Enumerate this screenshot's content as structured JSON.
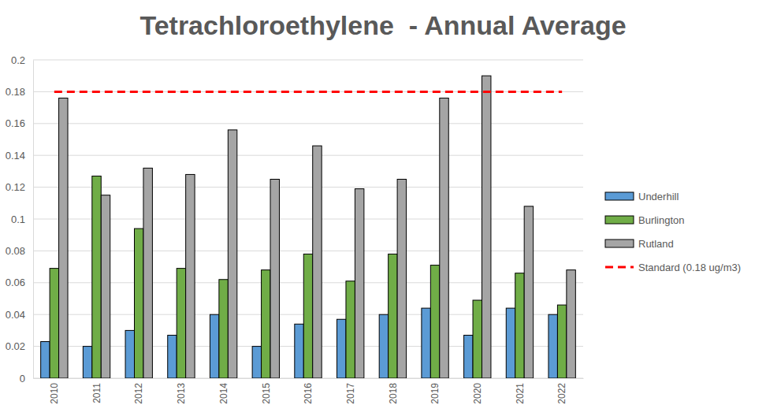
{
  "chart_data": {
    "type": "bar",
    "title": "Tetrachloroethylene  - Annual Average",
    "categories": [
      "2010",
      "2011",
      "2012",
      "2013",
      "2014",
      "2015",
      "2016",
      "2017",
      "2018",
      "2019",
      "2020",
      "2021",
      "2022"
    ],
    "series": [
      {
        "name": "Underhill",
        "color": "#5b9bd5",
        "values": [
          0.023,
          0.02,
          0.03,
          0.027,
          0.04,
          0.02,
          0.034,
          0.037,
          0.04,
          0.044,
          0.027,
          0.044,
          0.04
        ]
      },
      {
        "name": "Burlington",
        "color": "#70ad47",
        "values": [
          0.069,
          0.127,
          0.094,
          0.069,
          0.062,
          0.068,
          0.078,
          0.061,
          0.078,
          0.071,
          0.049,
          0.066,
          0.046
        ]
      },
      {
        "name": "Rutland",
        "color": "#a5a5a5",
        "values": [
          0.176,
          0.115,
          0.132,
          0.128,
          0.156,
          0.125,
          0.146,
          0.119,
          0.125,
          0.176,
          0.19,
          0.108,
          0.068
        ]
      },
      {
        "name": "Standard (0.18 ug/m3)",
        "type": "line",
        "line_style": "dashed",
        "color": "#ff0000",
        "values": [
          0.18,
          0.18,
          0.18,
          0.18,
          0.18,
          0.18,
          0.18,
          0.18,
          0.18,
          0.18,
          0.18,
          0.18,
          0.18
        ]
      }
    ],
    "ylim": [
      0,
      0.2
    ],
    "yticks": [
      0,
      0.02,
      0.04,
      0.06,
      0.08,
      0.1,
      0.12,
      0.14,
      0.16,
      0.18,
      0.2
    ],
    "grid": true,
    "legend": "right"
  }
}
